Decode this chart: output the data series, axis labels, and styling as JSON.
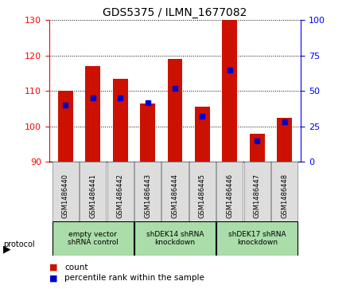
{
  "title": "GDS5375 / ILMN_1677082",
  "samples": [
    "GSM1486440",
    "GSM1486441",
    "GSM1486442",
    "GSM1486443",
    "GSM1486444",
    "GSM1486445",
    "GSM1486446",
    "GSM1486447",
    "GSM1486448"
  ],
  "counts": [
    110.0,
    117.0,
    113.5,
    106.5,
    119.0,
    105.5,
    130.0,
    98.0,
    102.5
  ],
  "percentile_ranks": [
    40,
    45,
    45,
    42,
    52,
    32,
    65,
    15,
    28
  ],
  "ylim_left": [
    90,
    130
  ],
  "ylim_right": [
    0,
    100
  ],
  "yticks_left": [
    90,
    100,
    110,
    120,
    130
  ],
  "yticks_right": [
    0,
    25,
    50,
    75,
    100
  ],
  "protocol_groups": [
    {
      "label": "empty vector\nshRNA control",
      "start": 0,
      "end": 3
    },
    {
      "label": "shDEK14 shRNA\nknockdown",
      "start": 3,
      "end": 6
    },
    {
      "label": "shDEK17 shRNA\nknockdown",
      "start": 6,
      "end": 9
    }
  ],
  "bar_color": "#cc1100",
  "dot_color": "#0000cc",
  "group_bg_color": "#aaddaa",
  "sample_bg_color": "#dddddd",
  "title_fontsize": 10,
  "tick_fontsize": 8,
  "sample_label_fontsize": 6,
  "group_label_fontsize": 6.5,
  "legend_fontsize": 7.5
}
